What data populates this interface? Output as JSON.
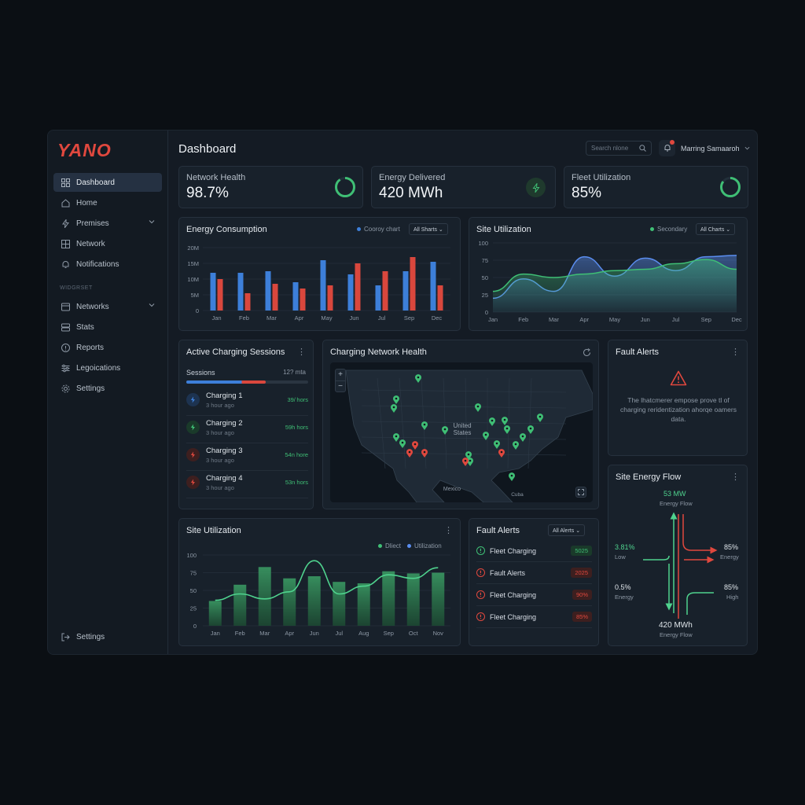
{
  "app": {
    "logo": "YANO"
  },
  "sidebar": {
    "items": [
      {
        "label": "Dashboard",
        "icon": "grid-icon",
        "active": true
      },
      {
        "label": "Home",
        "icon": "home-icon"
      },
      {
        "label": "Premises",
        "icon": "bolt-icon",
        "chevron": true
      },
      {
        "label": "Network",
        "icon": "network-icon"
      },
      {
        "label": "Notifications",
        "icon": "bell-icon"
      }
    ],
    "section_label": "WIDGRSET",
    "items2": [
      {
        "label": "Networks",
        "icon": "list-icon",
        "chevron": true
      },
      {
        "label": "Stats",
        "icon": "stack-icon"
      },
      {
        "label": "Reports",
        "icon": "info-icon"
      },
      {
        "label": "Legoications",
        "icon": "sliders-icon"
      },
      {
        "label": "Settings",
        "icon": "gear-icon"
      }
    ],
    "footer_label": "Settings"
  },
  "header": {
    "title": "Dashboard",
    "search_placeholder": "Search nlone",
    "user_name": "Marring Samaaroh"
  },
  "kpis": [
    {
      "label": "Network Health",
      "value": "98.7%",
      "ring_fraction": 0.9,
      "color": "#3fbf75"
    },
    {
      "label": "Energy Delivered",
      "value": "420 MWh",
      "icon": "lightning-icon",
      "color": "#3fbf75"
    },
    {
      "label": "Fleet Utilization",
      "value": "85%",
      "ring_fraction": 0.85,
      "color": "#3fbf75"
    }
  ],
  "energy_consumption": {
    "title": "Energy Consumption",
    "legend": "Cooroy chart",
    "dropdown": "All Sharts",
    "chart_data": {
      "type": "bar",
      "categories": [
        "Jan",
        "Feb",
        "Mar",
        "Apr",
        "May",
        "Jun",
        "Jul",
        "Sep",
        "Dec"
      ],
      "yticks": [
        "20M",
        "15M",
        "10M",
        "5M",
        "0"
      ],
      "ylim": [
        0,
        20
      ],
      "series": [
        {
          "values": [
            12,
            12,
            12.5,
            9,
            16,
            11.5,
            8,
            12.5,
            15.5
          ],
          "color": "#3d7fd9"
        },
        {
          "values": [
            10,
            5.5,
            8.5,
            7,
            8,
            15,
            12.5,
            17,
            8
          ],
          "color": "#d9473d"
        }
      ]
    }
  },
  "site_utilization_top": {
    "title": "Site Utilization",
    "legend": "Secondary",
    "dropdown": "All Charts",
    "chart_data": {
      "type": "area",
      "categories": [
        "Jan",
        "Feb",
        "Mar",
        "Apr",
        "May",
        "Jun",
        "Jul",
        "Sep",
        "Dec"
      ],
      "yticks": [
        "100",
        "75",
        "50",
        "25",
        "0"
      ],
      "ylim": [
        0,
        100
      ],
      "series": [
        {
          "values": [
            20,
            48,
            30,
            80,
            52,
            78,
            60,
            80,
            82
          ],
          "color": "#5b8ef0"
        },
        {
          "values": [
            30,
            55,
            50,
            55,
            60,
            62,
            70,
            76,
            62
          ],
          "color": "#3fbf75"
        }
      ]
    }
  },
  "sessions": {
    "title": "Active Charging Sessions",
    "header_left": "Sessions",
    "header_right": "12? mta",
    "progress": 0.65,
    "rows": [
      {
        "name": "Charging 1",
        "sub": "3 hour ago",
        "dur": "39/ hors",
        "color": "#3d7fd9"
      },
      {
        "name": "Charging 2",
        "sub": "3 hour ago",
        "dur": "59h hors",
        "color": "#3fbf75"
      },
      {
        "name": "Charging 3",
        "sub": "3 hour ago",
        "dur": "54n hore",
        "color": "#d9473d"
      },
      {
        "name": "Charging 4",
        "sub": "3 hour ago",
        "dur": "53n hors",
        "color": "#d9473d"
      }
    ]
  },
  "map": {
    "title": "Charging Network Health",
    "labels": {
      "country": "United States",
      "mexico": "Mexico",
      "cuba": "Cuba"
    },
    "zoom_in": "+",
    "zoom_out": "−"
  },
  "fault_alerts_top": {
    "title": "Fault Alerts",
    "message": "The lhatcmerer empose prove tl of charging reridentization ahorqe oamers data."
  },
  "site_utilization_bottom": {
    "title": "Site Utilization",
    "legend": [
      "Dliect",
      "Utilization"
    ],
    "chart_data": {
      "type": "bar",
      "categories": [
        "Jan",
        "Feb",
        "Mar",
        "Apr",
        "Jun",
        "Jul",
        "Aug",
        "Sep",
        "Oct",
        "Nov"
      ],
      "yticks": [
        "100",
        "75",
        "50",
        "25",
        "0"
      ],
      "ylim": [
        0,
        100
      ],
      "series": [
        {
          "name": "Dliect",
          "values": [
            35,
            58,
            83,
            67,
            70,
            62,
            60,
            77,
            74,
            75
          ],
          "color": "#2f7d52"
        },
        {
          "name": "Utilization",
          "values": [
            36,
            45,
            38,
            48,
            92,
            45,
            56,
            72,
            67,
            82
          ],
          "color": "#4fd38e"
        }
      ]
    }
  },
  "fault_alerts_bottom": {
    "title": "Fault Alerts",
    "dropdown": "All Alerts",
    "rows": [
      {
        "name": "Fleet Charging",
        "badge": "5025",
        "status": "ok"
      },
      {
        "name": "Fault Alerts",
        "badge": "2025",
        "status": "warn"
      },
      {
        "name": "Fleet Charging",
        "badge": "90%",
        "status": "warn"
      },
      {
        "name": "Fleet Charging",
        "badge": "85%",
        "status": "warn"
      }
    ]
  },
  "energy_flow": {
    "title": "Site Energy Flow",
    "top_value": "53 MW",
    "top_label": "Energy Flow",
    "left1_value": "3.81%",
    "left1_label": "Low",
    "right1_value": "85%",
    "right1_label": "Energy",
    "left2_value": "0.5%",
    "left2_label": "Energy",
    "right2_value": "85%",
    "right2_label": "High",
    "bottom_value": "420 MWh",
    "bottom_label": "Energy Flow"
  }
}
